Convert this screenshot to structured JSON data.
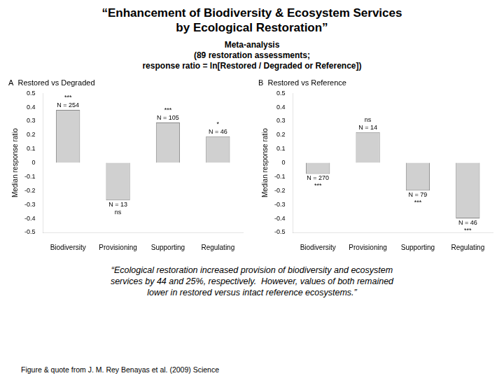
{
  "title": "“Enhancement of Biodiversity & Ecosystem Services\nby Ecological Restoration”",
  "subtitle": "Meta-analysis\n(89 restoration assessments;\nresponse ratio = ln[Restored / Degraded or Reference])",
  "annotations": [
    "“Ecological restoration increased provision of biodiversity and ecosystem\nservices by 44 and 25%, respectively.  However, values of both remained\nlower in restored versus intact reference ecosystems.”",
    "Figure & quote from J. M. Rey Benayas et al. (2009) Science"
  ],
  "chart_data": [
    {
      "type": "bar",
      "title": "A  Restored vs Degraded",
      "categories": [
        "Biodiversity",
        "Provisioning",
        "Supporting",
        "Regulating"
      ],
      "values": [
        0.38,
        -0.27,
        0.29,
        0.19
      ],
      "n": [
        "N = 254",
        "N = 13",
        "N = 105",
        "N = 46"
      ],
      "significance": [
        "***",
        "ns",
        "***",
        "*"
      ],
      "color": "#d0d0d0",
      "ylabel": "Median response ratio",
      "ylim": [
        -0.5,
        0.5
      ],
      "yticks": [
        -0.5,
        -0.4,
        -0.3,
        -0.2,
        -0.1,
        0,
        0.1,
        0.2,
        0.3,
        0.4,
        0.5
      ],
      "grid": false
    },
    {
      "type": "bar",
      "title": "B  Restored vs Reference",
      "categories": [
        "Biodiversity",
        "Provisioning",
        "Supporting",
        "Regulating"
      ],
      "values": [
        -0.08,
        0.22,
        -0.2,
        -0.4
      ],
      "n": [
        "N = 270",
        "N = 14",
        "N = 79",
        "N = 46"
      ],
      "significance": [
        "***",
        "ns",
        "***",
        "***"
      ],
      "color": "#d0d0d0",
      "ylabel": "Median response ratio",
      "ylim": [
        -0.5,
        0.5
      ],
      "yticks": [
        -0.5,
        -0.4,
        -0.3,
        -0.2,
        -0.1,
        0,
        0.1,
        0.2,
        0.3,
        0.4,
        0.5
      ],
      "grid": false
    }
  ]
}
